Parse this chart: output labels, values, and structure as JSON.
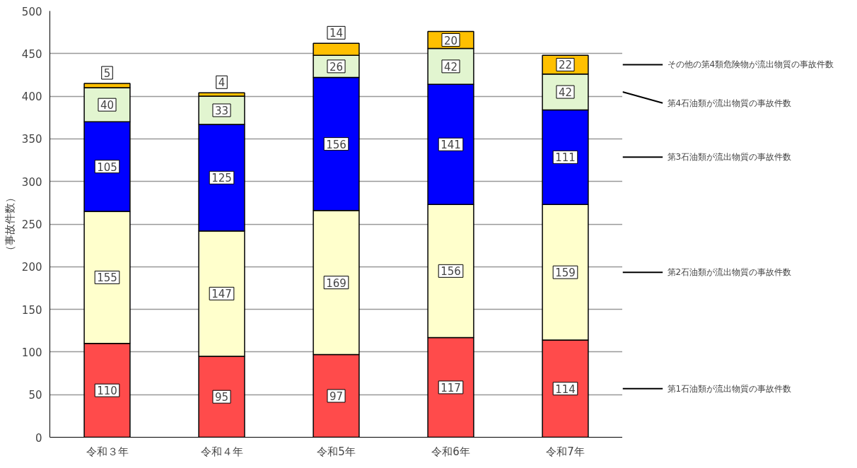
{
  "chart_data": {
    "type": "bar",
    "stacked": true,
    "ylabel": "（事故件数）",
    "categories": [
      "令和３年",
      "令和４年",
      "令和5年",
      "令和6年",
      "令和7年"
    ],
    "series": [
      {
        "name": "第1石油類が流出物質の事故件数",
        "color": "#ff4b4b",
        "values": [
          110,
          95,
          97,
          117,
          114
        ]
      },
      {
        "name": "第2石油類が流出物質の事故件数",
        "color": "#ffffcc",
        "values": [
          155,
          147,
          169,
          156,
          159
        ]
      },
      {
        "name": "第3石油類が流出物質の事故件数",
        "color": "#0000ff",
        "values": [
          105,
          125,
          156,
          141,
          111
        ]
      },
      {
        "name": "第4石油類が流出物質の事故件数",
        "color": "#e2f5d0",
        "values": [
          40,
          33,
          26,
          42,
          42
        ]
      },
      {
        "name": "その他の第4類危険物が流出物質の事故件数",
        "color": "#ffc000",
        "values": [
          5,
          4,
          14,
          20,
          22
        ]
      }
    ],
    "ylim": [
      0,
      500
    ],
    "yticks": [
      0,
      50,
      100,
      150,
      200,
      250,
      300,
      350,
      400,
      450,
      500
    ],
    "grid": "y",
    "data_labels": true,
    "legend": "right"
  }
}
